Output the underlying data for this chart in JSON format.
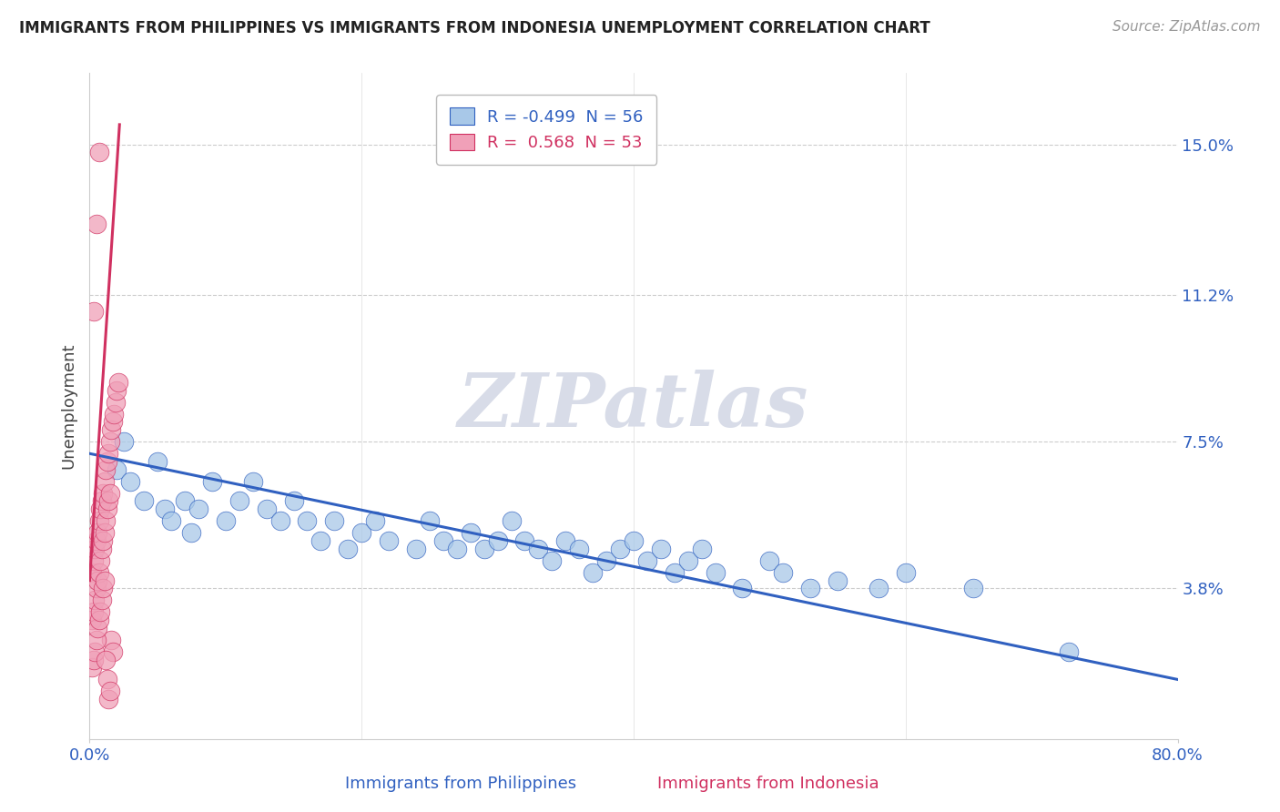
{
  "title": "IMMIGRANTS FROM PHILIPPINES VS IMMIGRANTS FROM INDONESIA UNEMPLOYMENT CORRELATION CHART",
  "source": "Source: ZipAtlas.com",
  "xlabel_philippines": "Immigrants from Philippines",
  "xlabel_indonesia": "Immigrants from Indonesia",
  "ylabel": "Unemployment",
  "r_philippines": -0.499,
  "n_philippines": 56,
  "r_indonesia": 0.568,
  "n_indonesia": 53,
  "xlim": [
    0.0,
    0.8
  ],
  "ylim": [
    0.0,
    0.168
  ],
  "yticks": [
    0.038,
    0.075,
    0.112,
    0.15
  ],
  "ytick_labels": [
    "3.8%",
    "7.5%",
    "11.2%",
    "15.0%"
  ],
  "xtick_labels_left": "0.0%",
  "xtick_labels_right": "80.0%",
  "color_philippines": "#a8c8e8",
  "color_indonesia": "#f0a0b8",
  "trendline_philippines": "#3060c0",
  "trendline_indonesia": "#d03060",
  "watermark": "ZIPatlas",
  "watermark_color": "#d8dce8",
  "philippines_x": [
    0.02,
    0.025,
    0.03,
    0.04,
    0.05,
    0.055,
    0.06,
    0.07,
    0.075,
    0.08,
    0.09,
    0.1,
    0.11,
    0.12,
    0.13,
    0.14,
    0.15,
    0.16,
    0.17,
    0.18,
    0.19,
    0.2,
    0.21,
    0.22,
    0.24,
    0.25,
    0.26,
    0.27,
    0.28,
    0.29,
    0.3,
    0.31,
    0.32,
    0.33,
    0.34,
    0.35,
    0.36,
    0.37,
    0.38,
    0.39,
    0.4,
    0.41,
    0.42,
    0.43,
    0.44,
    0.45,
    0.46,
    0.48,
    0.5,
    0.51,
    0.53,
    0.55,
    0.58,
    0.6,
    0.65,
    0.72
  ],
  "philippines_y": [
    0.068,
    0.075,
    0.065,
    0.06,
    0.07,
    0.058,
    0.055,
    0.06,
    0.052,
    0.058,
    0.065,
    0.055,
    0.06,
    0.065,
    0.058,
    0.055,
    0.06,
    0.055,
    0.05,
    0.055,
    0.048,
    0.052,
    0.055,
    0.05,
    0.048,
    0.055,
    0.05,
    0.048,
    0.052,
    0.048,
    0.05,
    0.055,
    0.05,
    0.048,
    0.045,
    0.05,
    0.048,
    0.042,
    0.045,
    0.048,
    0.05,
    0.045,
    0.048,
    0.042,
    0.045,
    0.048,
    0.042,
    0.038,
    0.045,
    0.042,
    0.038,
    0.04,
    0.038,
    0.042,
    0.038,
    0.022
  ],
  "indonesia_x": [
    0.002,
    0.003,
    0.004,
    0.005,
    0.006,
    0.007,
    0.008,
    0.009,
    0.01,
    0.011,
    0.012,
    0.013,
    0.014,
    0.015,
    0.016,
    0.017,
    0.018,
    0.019,
    0.02,
    0.021,
    0.002,
    0.003,
    0.004,
    0.005,
    0.006,
    0.007,
    0.008,
    0.009,
    0.01,
    0.011,
    0.012,
    0.013,
    0.014,
    0.015,
    0.016,
    0.017,
    0.002,
    0.003,
    0.004,
    0.005,
    0.006,
    0.007,
    0.008,
    0.009,
    0.01,
    0.011,
    0.012,
    0.013,
    0.014,
    0.015,
    0.003,
    0.005,
    0.007
  ],
  "indonesia_y": [
    0.042,
    0.045,
    0.048,
    0.05,
    0.052,
    0.055,
    0.058,
    0.06,
    0.062,
    0.065,
    0.068,
    0.07,
    0.072,
    0.075,
    0.078,
    0.08,
    0.082,
    0.085,
    0.088,
    0.09,
    0.03,
    0.032,
    0.035,
    0.038,
    0.04,
    0.042,
    0.045,
    0.048,
    0.05,
    0.052,
    0.055,
    0.058,
    0.06,
    0.062,
    0.025,
    0.022,
    0.018,
    0.02,
    0.022,
    0.025,
    0.028,
    0.03,
    0.032,
    0.035,
    0.038,
    0.04,
    0.02,
    0.015,
    0.01,
    0.012,
    0.108,
    0.13,
    0.148
  ],
  "indo_trend_x0": 0.0,
  "indo_trend_y0": 0.04,
  "indo_trend_x1": 0.022,
  "indo_trend_y1": 0.155,
  "phil_trend_x0": 0.0,
  "phil_trend_y0": 0.072,
  "phil_trend_x1": 0.8,
  "phil_trend_y1": 0.015
}
